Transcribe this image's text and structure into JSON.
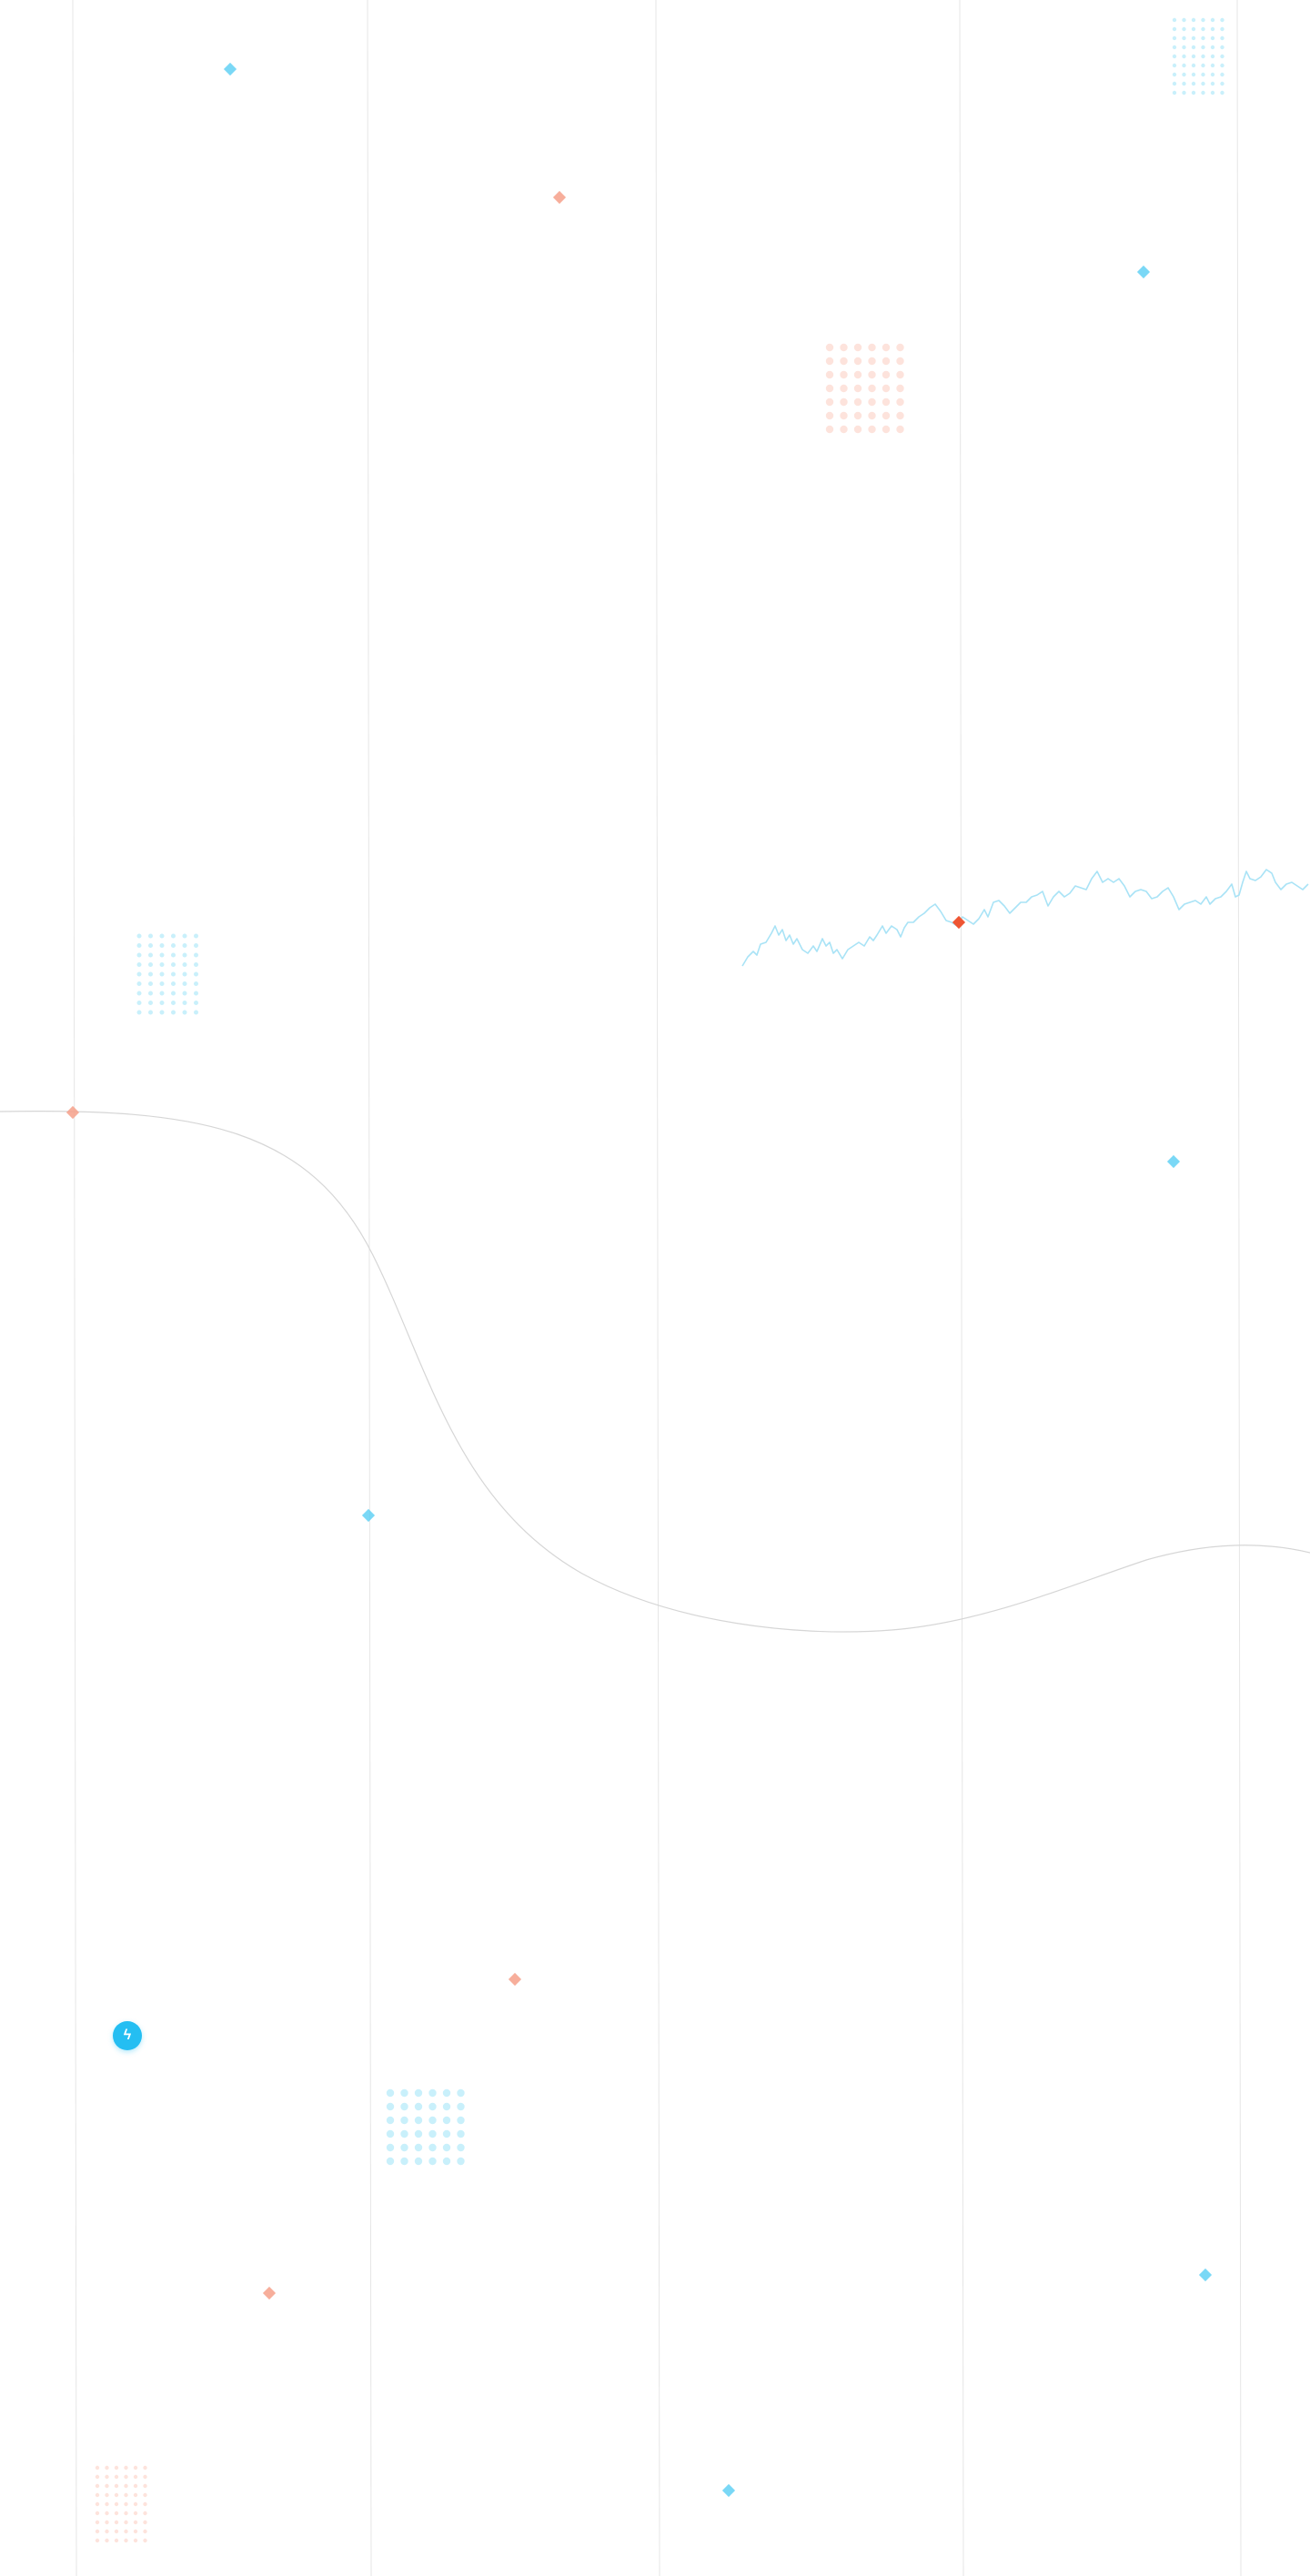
{
  "palette": {
    "background": "#ffffff",
    "grid_line": "#e6e6e6",
    "curve_line": "#d6d6d6",
    "accent_blue": "#24bef2",
    "accent_blue_light": "#c9f0fb",
    "accent_orange": "#f6a08a",
    "accent_orange_strong": "#ee5533",
    "accent_orange_light": "#fde3dc",
    "sparkline": "#a9e3f6"
  },
  "icons": {
    "badge_icon": "lightning-bolt-icon",
    "badge_glyph": "ϟ",
    "diamond_marker": "diamond-icon",
    "dot_grid": "dot-grid-pattern"
  }
}
